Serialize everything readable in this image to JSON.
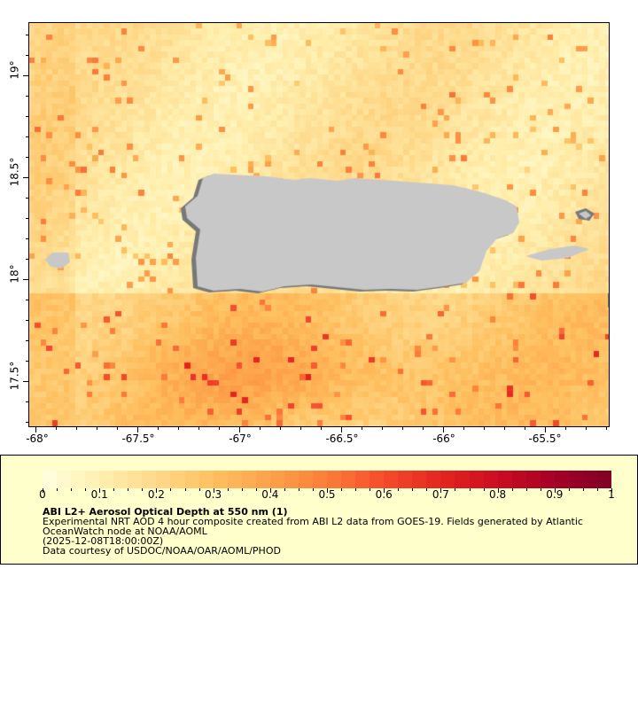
{
  "map": {
    "lon_ticks": [
      "-68°",
      "-67.5°",
      "-67°",
      "-66.5°",
      "-66°",
      "-65.5°"
    ],
    "lat_ticks": [
      "19°",
      "18.5°",
      "18°",
      "17.5°"
    ],
    "lon_range": [
      -68.035,
      -65.183
    ],
    "lat_range": [
      17.27,
      19.26
    ],
    "land_color": "#c8c8c8",
    "nodata_color": "#787878"
  },
  "colorbar": {
    "min": 0,
    "max": 1,
    "segments": 40,
    "tick_labels": [
      "0",
      "0.1",
      "0.2",
      "0.3",
      "0.4",
      "0.5",
      "0.6",
      "0.7",
      "0.8",
      "0.9",
      "1"
    ],
    "colors": [
      "#ffffe0",
      "#fff0b0",
      "#fed98a",
      "#fec060",
      "#fda14a",
      "#fc7d3a",
      "#f64c2c",
      "#e3261f",
      "#cc0c22",
      "#a50026",
      "#800026"
    ]
  },
  "legend": {
    "title": "ABI L2+ Aerosol Optical Depth at 550 nm (1)",
    "line1": "Experimental NRT AOD 4 hour composite created from ABI L2 data from GOES-19. Fields generated by Atlantic",
    "line2": "OceanWatch node at NOAA/AOML",
    "line3": "(2025-12-08T18:00:00Z)",
    "line4": "Data courtesy of USDOC/NOAA/OAR/AOML/PHOD",
    "background": "#ffffcc"
  }
}
